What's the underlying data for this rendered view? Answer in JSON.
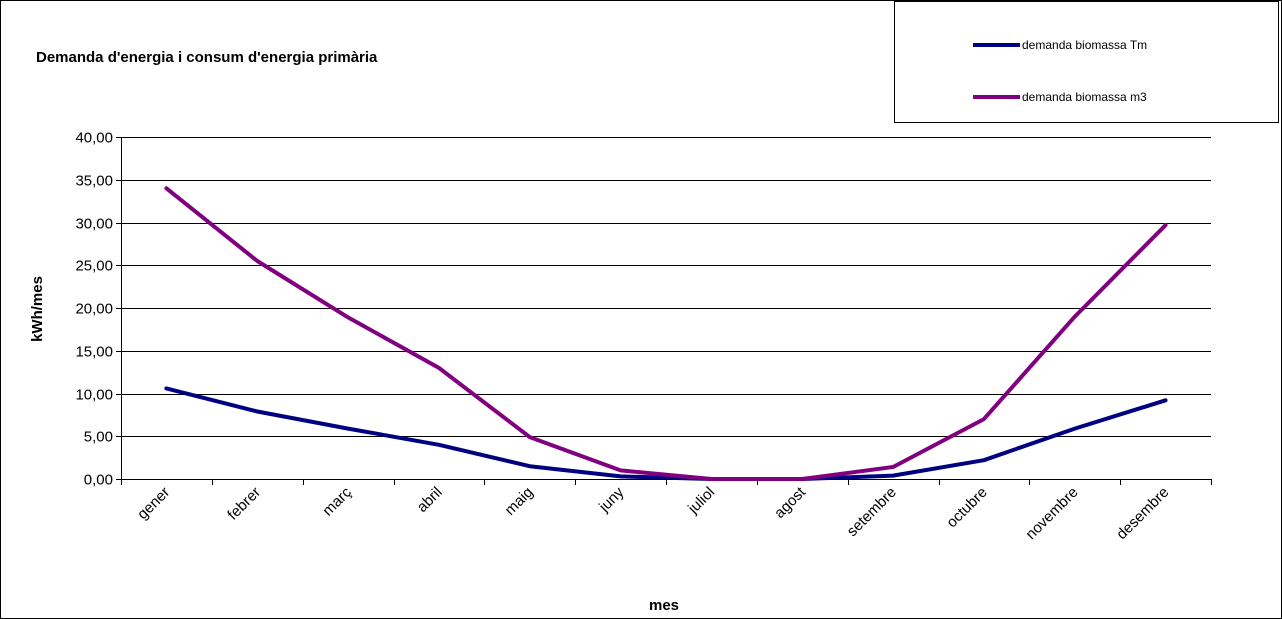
{
  "chart_data": {
    "type": "line",
    "title": "Demanda d'energia i consum d'energia primària",
    "xlabel": "mes",
    "ylabel": "kWh/mes",
    "ylim": [
      0,
      40
    ],
    "y_ticks": [
      "0,00",
      "5,00",
      "10,00",
      "15,00",
      "20,00",
      "25,00",
      "30,00",
      "35,00",
      "40,00"
    ],
    "grid": true,
    "legend_position": "top-right",
    "categories": [
      "gener",
      "febrer",
      "març",
      "abril",
      "maig",
      "juny",
      "juliol",
      "agost",
      "setembre",
      "octubre",
      "novembre",
      "desembre"
    ],
    "series": [
      {
        "name": "demanda biomassa Tm",
        "color": "#000080",
        "values": [
          10.6,
          7.9,
          5.9,
          4.0,
          1.5,
          0.3,
          0.0,
          0.0,
          0.4,
          2.2,
          5.9,
          9.2
        ]
      },
      {
        "name": "demanda biomassa m3",
        "color": "#800080",
        "values": [
          34.0,
          25.5,
          18.9,
          13.0,
          4.9,
          1.0,
          0.0,
          0.0,
          1.4,
          7.0,
          19.0,
          29.7
        ]
      }
    ]
  }
}
